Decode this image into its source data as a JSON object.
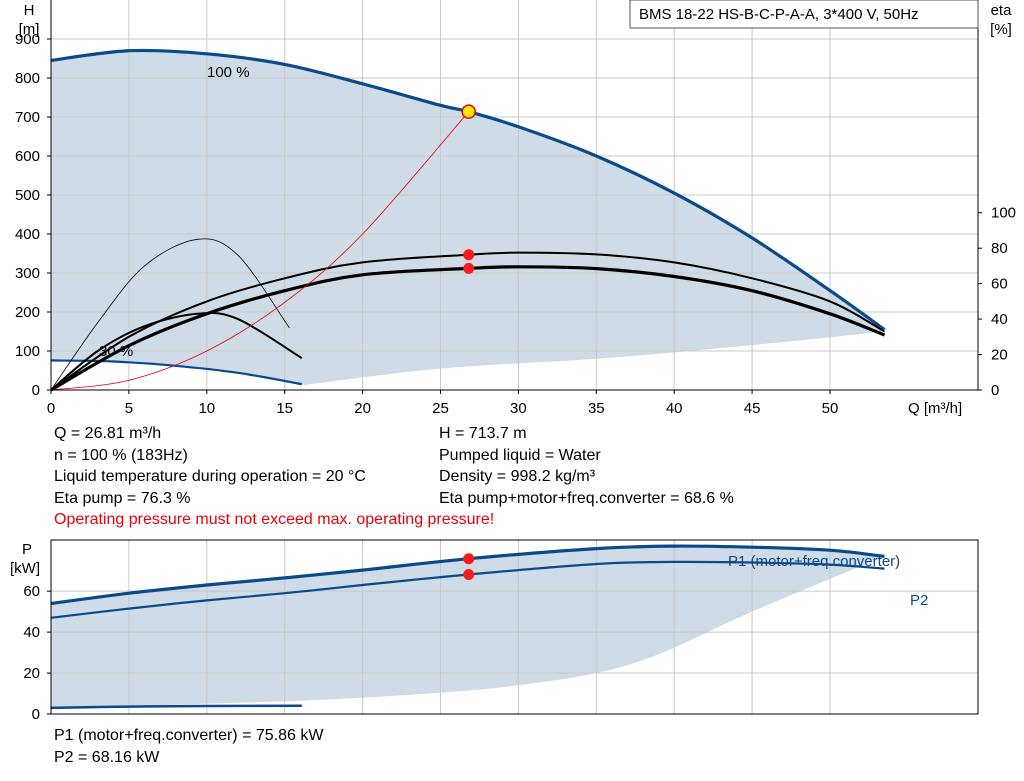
{
  "model_label": "BMS 18-22 HS-B-C-P-A-A, 3*400 V, 50Hz",
  "operating_info": {
    "left": [
      "Q = 26.81 m³/h",
      "n = 100 % (183Hz)",
      "Liquid temperature during operation = 20 °C",
      "Eta pump = 76.3 %"
    ],
    "right": [
      "H = 713.7 m",
      "Pumped liquid = Water",
      "Density = 998.2 kg/m³",
      "Eta pump+motor+freq.converter = 68.6 %"
    ],
    "warning": "Operating pressure must not exceed max. operating pressure!"
  },
  "power_info": [
    "P1 (motor+freq.converter) = 75.86 kW",
    "P2 = 68.16 kW"
  ],
  "colors": {
    "curve": "#0a4a8a",
    "area": "#cfdbe6",
    "eta": "#000000",
    "system": "#e8000b",
    "grid": "#c8c8c8"
  },
  "chart_data": [
    {
      "type": "line",
      "title": "",
      "ylabel": "H\n[m]",
      "y2label": "eta\n[%]",
      "xlabel": "Q [m³/h]",
      "xlim": [
        0,
        59.5
      ],
      "ylim": [
        0,
        1000
      ],
      "y2lim": [
        0,
        220
      ],
      "xticks": [
        0,
        5,
        10,
        15,
        20,
        25,
        30,
        35,
        40,
        45,
        50
      ],
      "yticks": [
        0,
        100,
        200,
        300,
        400,
        500,
        600,
        700,
        800,
        900
      ],
      "y2ticks": [
        0,
        20,
        40,
        60,
        80,
        100
      ],
      "grid": true,
      "annotations": [
        {
          "text": "100 %",
          "x": 11.2,
          "y": 880
        },
        {
          "text": "30 %",
          "x": 4.3,
          "y": 100
        }
      ],
      "operating_point": {
        "Q": 26.81,
        "H": 713.7,
        "eta_pump": 76.3,
        "eta_total": 68.6
      },
      "series": [
        {
          "role": "head-100",
          "axis": "y",
          "values": [
            [
              0,
              845
            ],
            [
              5,
              870
            ],
            [
              10,
              862
            ],
            [
              15,
              835
            ],
            [
              20,
              785
            ],
            [
              25,
              730
            ],
            [
              26.81,
              713.7
            ],
            [
              30,
              675
            ],
            [
              35,
              600
            ],
            [
              40,
              505
            ],
            [
              45,
              390
            ],
            [
              50,
              255
            ],
            [
              53.5,
              155
            ]
          ]
        },
        {
          "role": "head-30",
          "axis": "y",
          "values": [
            [
              0,
              76
            ],
            [
              4,
              73
            ],
            [
              8,
              62
            ],
            [
              12,
              44
            ],
            [
              16.1,
              15
            ]
          ]
        },
        {
          "role": "head-min",
          "axis": "y",
          "values": [
            [
              53.5,
              150
            ],
            [
              45,
              115
            ],
            [
              35,
              80
            ],
            [
              25,
              55
            ],
            [
              16.1,
              12
            ]
          ]
        },
        {
          "role": "eta-total-100",
          "axis": "y2",
          "values": [
            [
              0,
              0
            ],
            [
              5,
              25
            ],
            [
              10,
              43
            ],
            [
              15,
              56
            ],
            [
              20,
              65
            ],
            [
              26.81,
              68.6
            ],
            [
              30,
              69.5
            ],
            [
              35,
              68.5
            ],
            [
              40,
              64
            ],
            [
              45,
              56
            ],
            [
              50,
              43
            ],
            [
              53.5,
              31
            ]
          ]
        },
        {
          "role": "eta-pump-100",
          "axis": "y2",
          "values": [
            [
              0,
              0
            ],
            [
              5,
              30
            ],
            [
              10,
              50
            ],
            [
              15,
              63
            ],
            [
              20,
              72
            ],
            [
              26.81,
              76.3
            ],
            [
              30,
              77.5
            ],
            [
              35,
              76.5
            ],
            [
              40,
              72
            ],
            [
              45,
              63
            ],
            [
              50,
              50
            ],
            [
              53.5,
              33
            ]
          ]
        },
        {
          "role": "eta-pump-30",
          "axis": "y2",
          "values": [
            [
              0,
              0
            ],
            [
              3,
              38
            ],
            [
              6,
              70
            ],
            [
              9.4,
              85
            ],
            [
              12,
              76
            ],
            [
              15.3,
              35
            ]
          ]
        },
        {
          "role": "eta-total-30",
          "axis": "y2",
          "values": [
            [
              0,
              0
            ],
            [
              3,
              22
            ],
            [
              6,
              36
            ],
            [
              9.4,
              43
            ],
            [
              12,
              40
            ],
            [
              16.1,
              18
            ]
          ]
        },
        {
          "role": "system-curve",
          "axis": "y",
          "values": [
            [
              0,
              0
            ],
            [
              5,
              25
            ],
            [
              10,
              100
            ],
            [
              15,
              225
            ],
            [
              20,
              400
            ],
            [
              26.81,
              713.7
            ]
          ]
        }
      ]
    },
    {
      "type": "line",
      "title": "",
      "ylabel": "P\n[kW]",
      "xlim": [
        0,
        59.5
      ],
      "ylim": [
        0,
        85
      ],
      "yticks": [
        0,
        20,
        40,
        60
      ],
      "grid": true,
      "operating_point": {
        "Q": 26.81,
        "P1": 75.86,
        "P2": 68.16
      },
      "series": [
        {
          "name": "P1 (motor+freq.converter)",
          "values": [
            [
              0,
              54
            ],
            [
              5,
              59
            ],
            [
              10,
              63
            ],
            [
              15,
              66.5
            ],
            [
              20,
              70.3
            ],
            [
              26.81,
              75.86
            ],
            [
              35,
              80.8
            ],
            [
              40,
              82
            ],
            [
              45,
              81.5
            ],
            [
              50,
              80
            ],
            [
              53.5,
              77
            ]
          ]
        },
        {
          "name": "P2",
          "values": [
            [
              0,
              47
            ],
            [
              5,
              51.5
            ],
            [
              10,
              55.5
            ],
            [
              15,
              59
            ],
            [
              20,
              63
            ],
            [
              26.81,
              68.16
            ],
            [
              35,
              73.3
            ],
            [
              40,
              74.3
            ],
            [
              45,
              74
            ],
            [
              50,
              73
            ],
            [
              53.5,
              71
            ]
          ]
        },
        {
          "role": "power-30",
          "values": [
            [
              0,
              3
            ],
            [
              5,
              3.6
            ],
            [
              10,
              3.9
            ],
            [
              16.1,
              4
            ]
          ]
        },
        {
          "role": "power-min",
          "values": [
            [
              53.5,
              77
            ],
            [
              45,
              50
            ],
            [
              37.5,
              25
            ],
            [
              30,
              14
            ],
            [
              20,
              8
            ],
            [
              10,
              5
            ],
            [
              0,
              3
            ]
          ]
        }
      ]
    }
  ]
}
